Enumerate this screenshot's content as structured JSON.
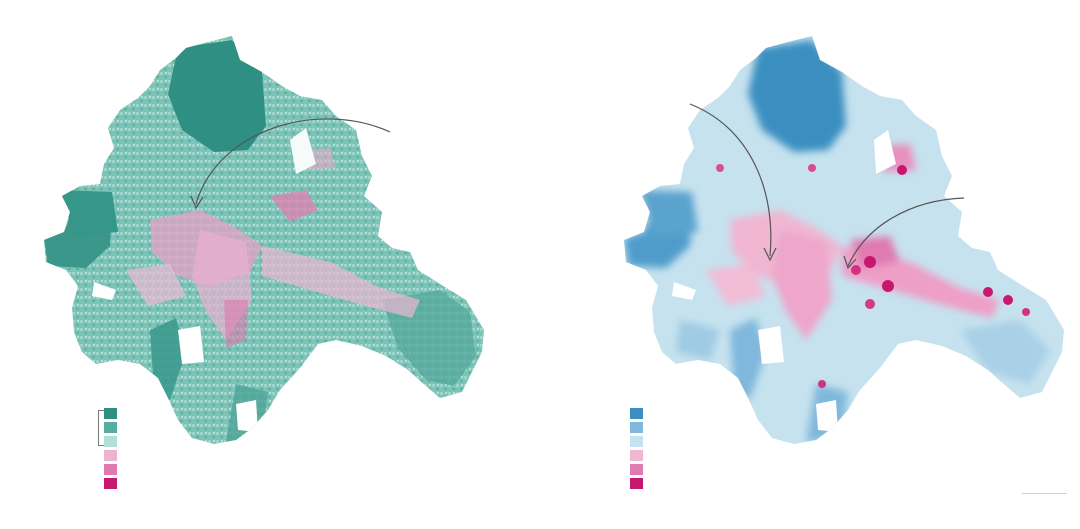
{
  "colors": {
    "teal_dark": "#2f8f83",
    "teal_mid": "#56aea1",
    "teal_light": "#9fd4cb",
    "blue_dark": "#3a8fc0",
    "blue_mid": "#7fb8dc",
    "blue_light": "#c6e2ef",
    "pink_light": "#f0b6d2",
    "pink_mid": "#e07ab0",
    "pink_dark": "#c8176f"
  },
  "legend_left": [
    "#2f8f83",
    "#56aea1",
    "#b4dfd8",
    "#eeb3cf",
    "#df79ae",
    "#c8176f"
  ],
  "legend_right": [
    "#3a8fc0",
    "#7fb8dc",
    "#c6e2ef",
    "#f0b6d2",
    "#e07ab0",
    "#c8176f"
  ]
}
